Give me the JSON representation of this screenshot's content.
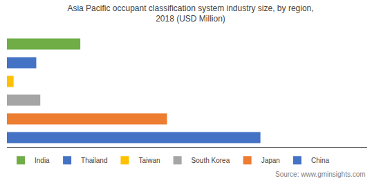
{
  "chart_data": {
    "type": "bar",
    "orientation": "horizontal",
    "title": "Asia Pacific occupant classification system industry size, by region,\n2018 (USD Million)",
    "categories": [
      "India",
      "Thailand",
      "Taiwan",
      "South Korea",
      "Japan",
      "China"
    ],
    "values": [
      55,
      22,
      5,
      25,
      120,
      190
    ],
    "colors": [
      "#70AD47",
      "#4472C4",
      "#FFC000",
      "#A5A5A5",
      "#ED7D31",
      "#4472C4"
    ],
    "xlim": [
      0,
      270
    ],
    "legend": "lower left",
    "grid": false,
    "tick_labels": false,
    "annotations": [
      "Source: www.gminsights.com"
    ]
  }
}
